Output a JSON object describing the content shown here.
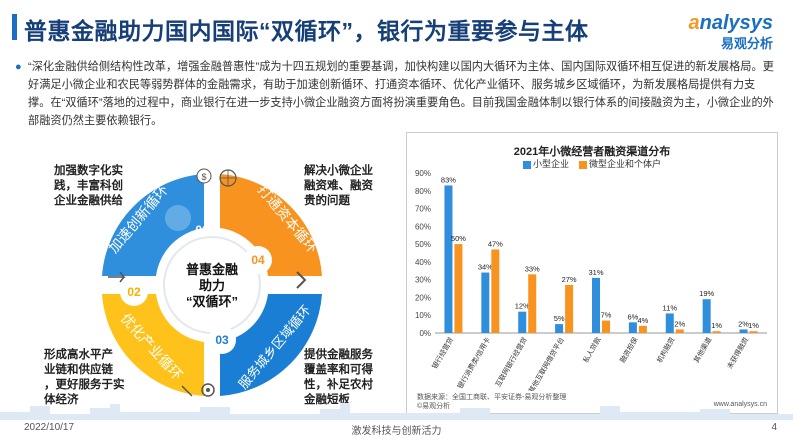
{
  "header": {
    "title": "普惠金融助力国内国际“双循环”，银行为重要参与主体",
    "logo_en_a": "a",
    "logo_en_rest": "nalysys",
    "logo_cn": "易观分析"
  },
  "intro": "“深化金融供给侧结构性改革，增强金融普惠性”成为十四五规划的重要基调，加快构建以国内大循环为主体、国内国际双循环相互促进的新发展格局。更好满足小微企业和农民等弱势群体的金融需求，有助于加速创新循环、打通资本循环、优化产业循环、服务城乡区域循环，为新发展格局提供有力支撑。在“双循环”落地的过程中，商业银行在进一步支持小微企业融资方面将扮演重要角色。目前我国金融体制以银行体系的间接融资为主，小微企业的外部融资仍然主要依赖银行。",
  "diagram": {
    "center_line1": "普惠金融",
    "center_line2": "助力",
    "center_line3": "“双循环”",
    "segments": [
      {
        "num": "01",
        "label": "加速创新循环",
        "desc": [
          "加强数字化实",
          "践，丰富科创",
          "企业金融供给"
        ],
        "color": "#2f8fdc"
      },
      {
        "num": "04",
        "label": "打通资本循环",
        "desc": [
          "解决小微企业",
          "融资难、融资",
          "贵的问题"
        ],
        "color": "#f7931e"
      },
      {
        "num": "02",
        "label": "优化产业循环",
        "desc": [
          "形成高水平产",
          "业链和供应链",
          "，更好服务于实",
          "体经济"
        ],
        "color": "#ffc21a"
      },
      {
        "num": "03",
        "label": "服务城乡区域循环",
        "desc": [
          "提供金融服务",
          "覆盖率和可得",
          "性，补足农村",
          "金融短板"
        ],
        "color": "#1a7fd4"
      }
    ]
  },
  "chart_data": {
    "type": "bar",
    "title": "2021年小微经营者融资渠道分布",
    "categories": [
      "银行经营贷",
      "银行消费类/信用卡",
      "互联网银行经营贷",
      "其他互联网借贷平台",
      "私人贷款",
      "融资担保",
      "机构融资",
      "其他渠道",
      "未获得融资"
    ],
    "series": [
      {
        "name": "小型企业",
        "values": [
          83,
          34,
          12,
          5,
          31,
          6,
          11,
          19,
          2
        ],
        "labels": [
          "83%",
          "34%",
          "12%",
          "5%",
          "31%",
          "6%",
          "11%",
          "19%",
          "2%"
        ],
        "color": "#2f8fdc"
      },
      {
        "name": "微型企业和个体户",
        "values": [
          50,
          47,
          33,
          27,
          7,
          4,
          2,
          1,
          1
        ],
        "labels": [
          "50%",
          "47%",
          "33%",
          "27%",
          "7%",
          "4%",
          "2%",
          "1%",
          "1%"
        ],
        "color": "#f7931e"
      }
    ],
    "ytick_labels": [
      "0%",
      "10%",
      "20%",
      "30%",
      "40%",
      "50%",
      "60%",
      "70%",
      "80%",
      "90%"
    ],
    "ylim": [
      0,
      90
    ],
    "grid": false,
    "legend": "top"
  },
  "chart_source_line1": "数据来源：全国工商联、平安证券-易观分析整理",
  "chart_source_line2": "©易观分析",
  "chart_site": "www.analysys.cn",
  "footer": {
    "date": "2022/10/17",
    "slogan": "激发科技与创新活力",
    "page": "4"
  }
}
